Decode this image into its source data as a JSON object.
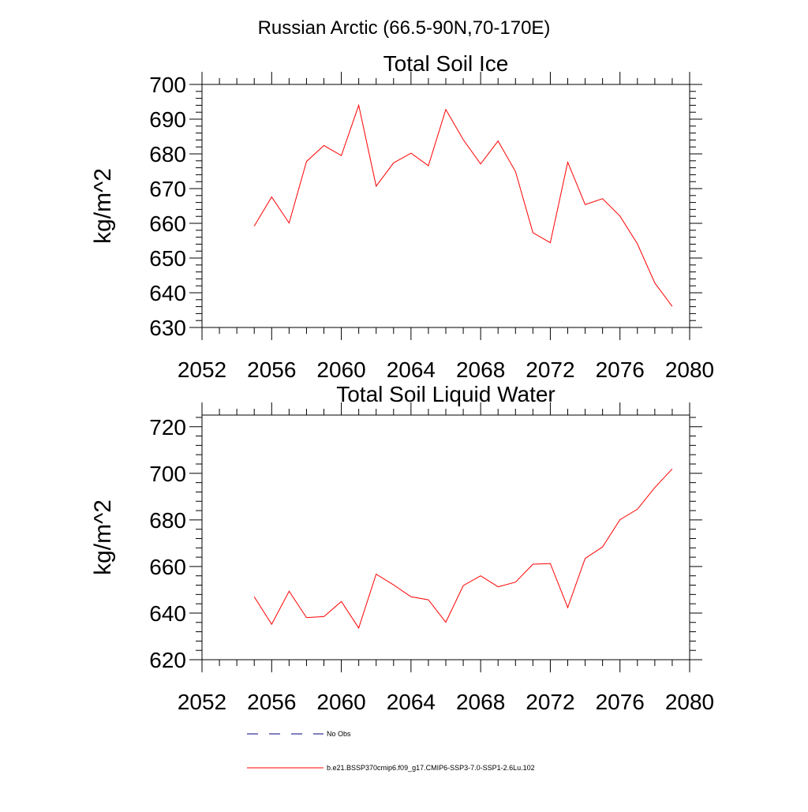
{
  "figure_title": "Russian Arctic (66.5-90N,70-170E)",
  "colors": {
    "model_line": "#ff0000",
    "obs_line": "#000080",
    "axis": "#000000"
  },
  "legend": [
    {
      "label": "No Obs",
      "style": "dashed",
      "color": "#000080"
    },
    {
      "label": "b.e21.BSSP370cmip6.f09_g17.CMIP6-SSP3-7.0-SSP1-2.6Lu.102",
      "style": "solid",
      "color": "#ff0000"
    }
  ],
  "chart_data": [
    {
      "type": "line",
      "title": "Total Soil Ice",
      "ylabel": "kg/m^2",
      "xlim": [
        2052,
        2080
      ],
      "ylim": [
        630,
        700
      ],
      "xticks": [
        2052,
        2056,
        2060,
        2064,
        2068,
        2072,
        2076,
        2080
      ],
      "yticks": [
        630,
        640,
        650,
        660,
        670,
        680,
        690,
        700
      ],
      "series": [
        {
          "x": [
            2055,
            2056,
            2057,
            2058,
            2059,
            2060,
            2061,
            2062,
            2063,
            2064,
            2065,
            2066,
            2067,
            2068,
            2069,
            2070,
            2071,
            2072,
            2073,
            2074,
            2075,
            2076,
            2077,
            2078,
            2079
          ],
          "values": [
            659.2,
            667.6,
            660.1,
            677.8,
            682.4,
            679.5,
            694.0,
            670.7,
            677.4,
            680.2,
            676.6,
            692.8,
            684.1,
            677.1,
            683.7,
            674.9,
            657.3,
            654.4,
            677.6,
            665.4,
            667.1,
            662.1,
            654.1,
            642.8,
            636.1
          ]
        }
      ]
    },
    {
      "type": "line",
      "title": "Total Soil Liquid Water",
      "ylabel": "kg/m^2",
      "xlim": [
        2052,
        2080
      ],
      "ylim": [
        620,
        725
      ],
      "xticks": [
        2052,
        2056,
        2060,
        2064,
        2068,
        2072,
        2076,
        2080
      ],
      "yticks": [
        620,
        640,
        660,
        680,
        700,
        720
      ],
      "series": [
        {
          "x": [
            2055,
            2056,
            2057,
            2058,
            2059,
            2060,
            2061,
            2062,
            2063,
            2064,
            2065,
            2066,
            2067,
            2068,
            2069,
            2070,
            2071,
            2072,
            2073,
            2074,
            2075,
            2076,
            2077,
            2078,
            2079
          ],
          "values": [
            647.0,
            635.2,
            649.4,
            638.1,
            638.5,
            645.0,
            633.6,
            656.7,
            652.1,
            647.0,
            645.7,
            636.1,
            651.8,
            656.0,
            651.3,
            653.3,
            661.0,
            661.3,
            642.4,
            663.5,
            668.4,
            680.1,
            684.6,
            693.9,
            701.9
          ]
        }
      ]
    }
  ]
}
